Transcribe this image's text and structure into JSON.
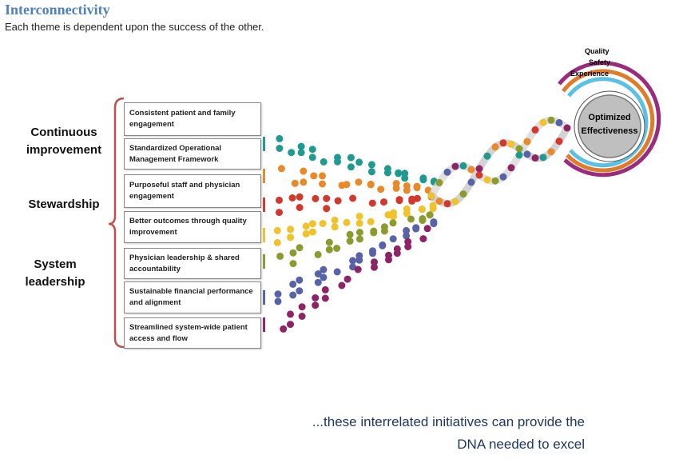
{
  "header": {
    "title": "Interconnectivity",
    "subtitle": "Each theme is dependent upon the success of the other."
  },
  "themes": [
    "Continuous improvement",
    "Stewardship",
    "System leadership"
  ],
  "boxes": [
    "Consistent patient and family engagement",
    "Standardized Operational Management Framework",
    "Purposeful staff and physician engagement",
    "Better outcomes through quality improvement",
    "Physician leadership & shared accountability",
    "Sustainable financial performance and alignment",
    "Streamlined system-wide patient access and flow"
  ],
  "rings": [
    "Quality",
    "Safety",
    "Experience"
  ],
  "center": "Optimized Effectiveness",
  "footer": [
    "...these interrelated initiatives can provide the",
    "DNA needed to excel"
  ]
}
